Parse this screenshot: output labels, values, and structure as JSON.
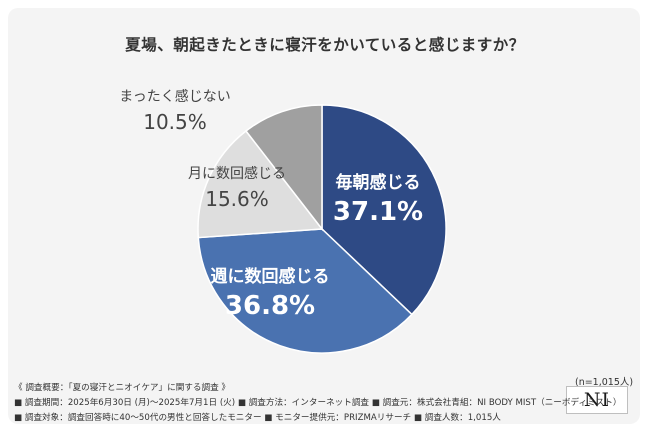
{
  "chart_data": {
    "type": "pie",
    "title": "夏場、朝起きたときに寝汗をかいていると感じますか？",
    "start_angle_deg": 0,
    "direction": "clockwise",
    "slices": [
      {
        "label": "毎朝感じる",
        "value": 37.1,
        "value_text": "37.1%",
        "color": "#2e4a85",
        "label_color": "#ffffff",
        "label_inside": true
      },
      {
        "label": "週に数回感じる",
        "value": 36.8,
        "value_text": "36.8%",
        "color": "#4a72b0",
        "label_color": "#ffffff",
        "label_inside": true
      },
      {
        "label": "月に数回感じる",
        "value": 15.6,
        "value_text": "15.6%",
        "color": "#dedede",
        "label_color": "#444444",
        "label_inside": false
      },
      {
        "label": "まったく感じない",
        "value": 10.5,
        "value_text": "10.5%",
        "color": "#a0a0a0",
        "label_color": "#444444",
        "label_inside": false
      }
    ]
  },
  "footer": {
    "n": "(n=1,015人)",
    "logo": "NI",
    "lines": [
      "《 調査概要：「夏の寝汗とニオイケア」に関する調査 》",
      "■ 調査期間：2025年6月30日 (月)〜2025年7月1日 (火) ■ 調査方法：インターネット調査 ■ 調査元：株式会社青組：NI BODY MIST（ニーボディミスト）",
      "■ 調査対象：調査回答時に40〜50代の男性と回答したモニター ■ モニター提供元：PRIZMAリサーチ ■ 調査人数：1,015人"
    ]
  }
}
